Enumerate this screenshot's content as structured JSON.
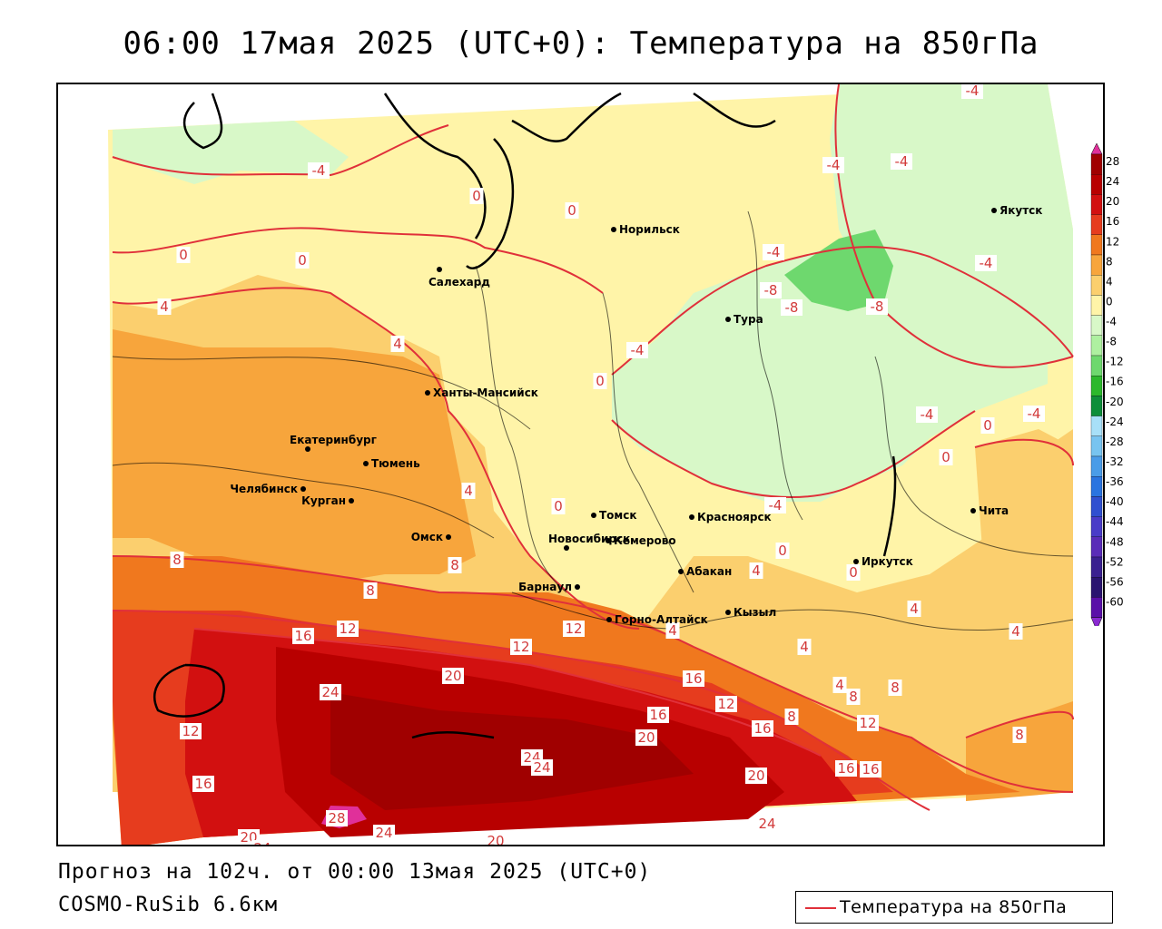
{
  "header": {
    "title": "06:00 17мая 2025 (UTC+0): Температура на 850гПа"
  },
  "footer": {
    "forecast": "Прогноз на 102ч. от 00:00 13мая 2025 (UTC+0)",
    "model": "COSMO-RuSib 6.6км"
  },
  "legend": {
    "label": "Температура на 850гПа",
    "color": "#e0303a"
  },
  "colorbar": {
    "ticks": [
      "28",
      "24",
      "20",
      "16",
      "12",
      "8",
      "4",
      "0",
      "-4",
      "-8",
      "-12",
      "-16",
      "-20",
      "-24",
      "-28",
      "-32",
      "-36",
      "-40",
      "-44",
      "-48",
      "-52",
      "-56",
      "-60"
    ],
    "colors": [
      "#a00000",
      "#b80000",
      "#d21010",
      "#e63c1e",
      "#f0781e",
      "#f7a53c",
      "#fbcf6e",
      "#fff4a8",
      "#d8f8c8",
      "#aef0a0",
      "#6ed86e",
      "#2cb82c",
      "#0e8e3a",
      "#a8e0f8",
      "#78c4f0",
      "#4a9ce8",
      "#2a74e0",
      "#3050d0",
      "#4a3cc8",
      "#5a2cb8",
      "#3a2090",
      "#2a1470",
      "#5a10a8"
    ],
    "top_color": "#e0309a",
    "bottom_color": "#8a2ad0"
  },
  "cities": [
    {
      "name": "Норильск"
    },
    {
      "name": "Якутск"
    },
    {
      "name": "Салехард"
    },
    {
      "name": "Тура"
    },
    {
      "name": "Ханты-Мансийск"
    },
    {
      "name": "Екатеринбург"
    },
    {
      "name": "Тюмень"
    },
    {
      "name": "Челябинск"
    },
    {
      "name": "Курган"
    },
    {
      "name": "Омск"
    },
    {
      "name": "Новосибирск"
    },
    {
      "name": "Томск"
    },
    {
      "name": "Кемерово"
    },
    {
      "name": "Красноярск"
    },
    {
      "name": "Барнаул"
    },
    {
      "name": "Абакан"
    },
    {
      "name": "Горно-Алтайск"
    },
    {
      "name": "Кызыл"
    },
    {
      "name": "Иркутск"
    },
    {
      "name": "Чита"
    }
  ],
  "isotherm_labels": [
    "-4",
    "-4",
    "-4",
    "-4",
    "-4",
    "-4",
    "-4",
    "-4",
    "-4",
    "-4",
    "-8",
    "-8",
    "-8",
    "0",
    "0",
    "0",
    "0",
    "0",
    "0",
    "0",
    "0",
    "0",
    "0",
    "4",
    "4",
    "4",
    "4",
    "4",
    "4",
    "4",
    "4",
    "4",
    "8",
    "8",
    "8",
    "8",
    "8",
    "8",
    "8",
    "12",
    "12",
    "12",
    "12",
    "12",
    "12",
    "16",
    "16",
    "16",
    "16",
    "16",
    "16",
    "16",
    "20",
    "20",
    "20",
    "20",
    "20",
    "24",
    "24",
    "24",
    "24",
    "24",
    "24",
    "28"
  ],
  "colors": {
    "accent": "#e0303a"
  }
}
